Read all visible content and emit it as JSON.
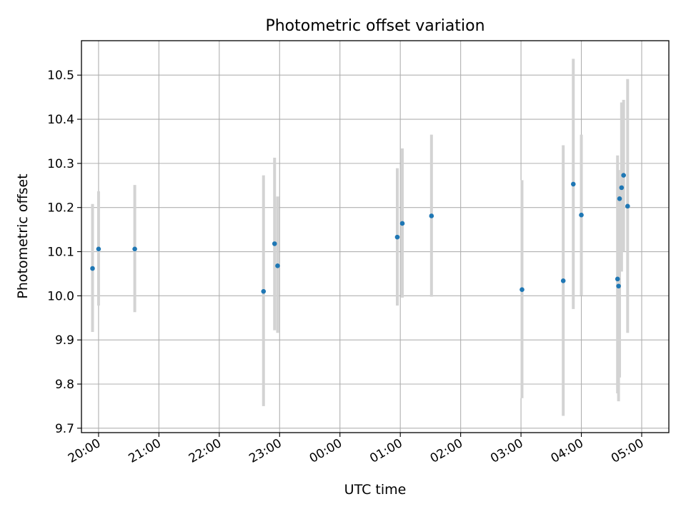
{
  "chart_data": {
    "type": "scatter",
    "title": "Photometric offset variation",
    "xlabel": "UTC time",
    "ylabel": "Photometric offset",
    "grid": true,
    "legend": "none",
    "x_axis_kind": "time",
    "x_ticks": [
      "20:00",
      "21:00",
      "22:00",
      "23:00",
      "00:00",
      "01:00",
      "02:00",
      "03:00",
      "04:00",
      "05:00"
    ],
    "y_ticks": [
      "9.7",
      "9.8",
      "9.9",
      "10.0",
      "10.1",
      "10.2",
      "10.3",
      "10.4",
      "10.5"
    ],
    "xlim": [
      "19:43",
      "05:27"
    ],
    "ylim": [
      9.69,
      10.578
    ],
    "colors": {
      "point": "#1f77b4",
      "errorbar": "#d3d3d3",
      "grid": "#b0b0b0"
    },
    "points": [
      {
        "x": "19:54",
        "y": 10.062,
        "err_low": 9.918,
        "err_high": 10.208
      },
      {
        "x": "20:00",
        "y": 10.106,
        "err_low": 9.978,
        "err_high": 10.237
      },
      {
        "x": "20:36",
        "y": 10.106,
        "err_low": 9.963,
        "err_high": 10.251
      },
      {
        "x": "22:44",
        "y": 10.01,
        "err_low": 9.75,
        "err_high": 10.273
      },
      {
        "x": "22:55",
        "y": 10.118,
        "err_low": 9.922,
        "err_high": 10.313
      },
      {
        "x": "22:58",
        "y": 10.068,
        "err_low": 9.916,
        "err_high": 10.225
      },
      {
        "x": "00:57",
        "y": 10.133,
        "err_low": 9.978,
        "err_high": 10.289
      },
      {
        "x": "01:02",
        "y": 10.164,
        "err_low": 9.996,
        "err_high": 10.334
      },
      {
        "x": "01:31",
        "y": 10.181,
        "err_low": 9.998,
        "err_high": 10.365
      },
      {
        "x": "03:01",
        "y": 10.014,
        "err_low": 9.768,
        "err_high": 10.262
      },
      {
        "x": "03:42",
        "y": 10.034,
        "err_low": 9.728,
        "err_high": 10.341
      },
      {
        "x": "03:52",
        "y": 10.253,
        "err_low": 9.97,
        "err_high": 10.537
      },
      {
        "x": "04:00",
        "y": 10.183,
        "err_low": 10.001,
        "err_high": 10.365
      },
      {
        "x": "04:36",
        "y": 10.038,
        "err_low": 9.779,
        "err_high": 10.318
      },
      {
        "x": "04:37",
        "y": 10.022,
        "err_low": 9.761,
        "err_high": 10.285
      },
      {
        "x": "04:38",
        "y": 10.22,
        "err_low": 9.815,
        "err_high": 10.25
      },
      {
        "x": "04:40",
        "y": 10.245,
        "err_low": 10.055,
        "err_high": 10.438
      },
      {
        "x": "04:42",
        "y": 10.273,
        "err_low": 10.1,
        "err_high": 10.444
      },
      {
        "x": "04:46",
        "y": 10.203,
        "err_low": 9.916,
        "err_high": 10.491
      }
    ]
  }
}
